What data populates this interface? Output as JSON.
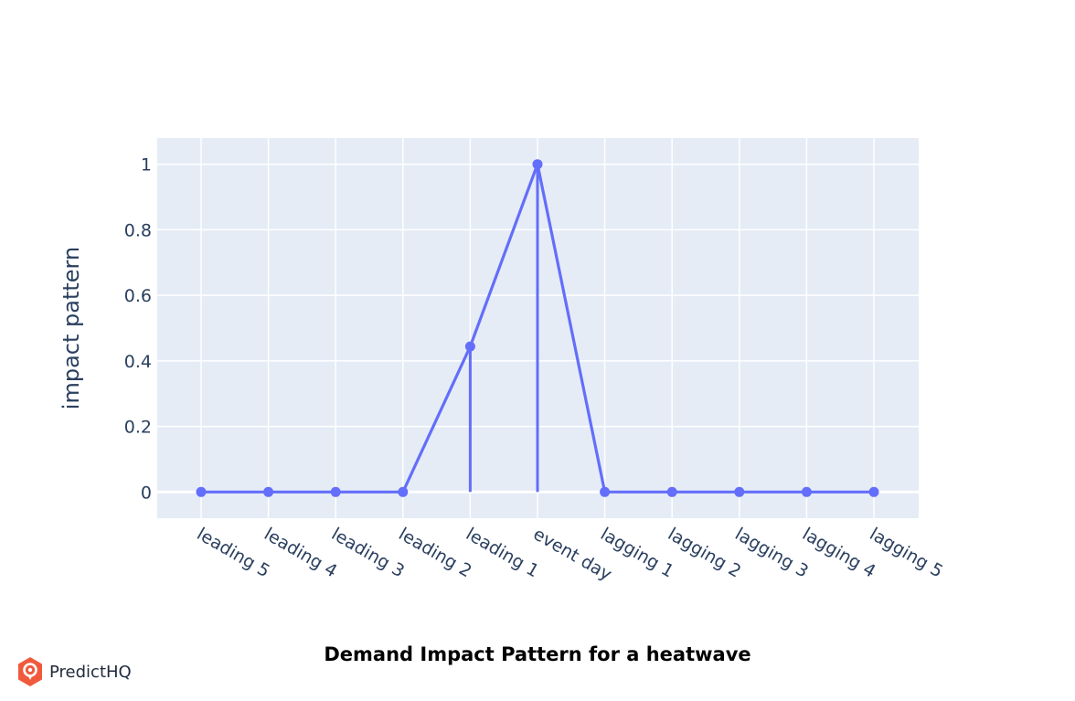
{
  "caption": "Demand Impact Pattern for a heatwave",
  "brand": {
    "name": "PredictHQ",
    "icon": "predicthq-logo-icon",
    "color": "#f05a3c"
  },
  "chart_data": {
    "type": "line",
    "categories": [
      "leading 5",
      "leading 4",
      "leading 3",
      "leading 2",
      "leading 1",
      "event day",
      "lagging 1",
      "lagging 2",
      "lagging 3",
      "lagging 4",
      "lagging 5"
    ],
    "series": [
      {
        "values": [
          0,
          0,
          0,
          0,
          0.444,
          1,
          0,
          0,
          0,
          0,
          0
        ],
        "color": "#636efa"
      }
    ],
    "stems": [
      {
        "category": "leading 1",
        "value": 0.444
      },
      {
        "category": "event day",
        "value": 1
      }
    ],
    "xlabel": "",
    "ylabel": "impact pattern",
    "ylim": [
      -0.08,
      1.08
    ],
    "yticks": [
      0,
      0.2,
      0.4,
      0.6,
      0.8,
      1
    ],
    "ytick_labels": [
      "0",
      "0.2",
      "0.4",
      "0.6",
      "0.8",
      "1"
    ],
    "grid": true,
    "plot_bgcolor": "#e5ecf6",
    "grid_color": "#ffffff"
  }
}
